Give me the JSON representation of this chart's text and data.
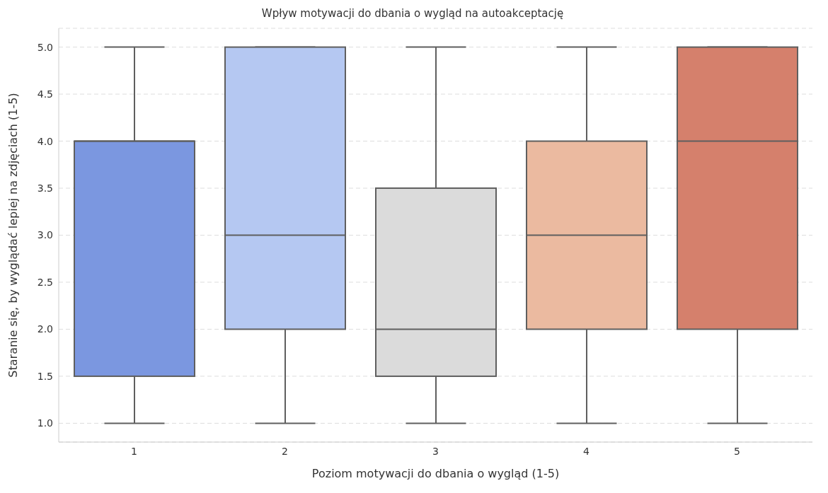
{
  "chart_data": {
    "type": "box",
    "title": "Wpływ motywacji do dbania o wygląd na autoakceptację",
    "xlabel": "Poziom motywacji do dbania o wygląd (1-5)",
    "ylabel": "Staranie się, by wyglądać lepiej na zdjęciach (1-5)",
    "categories": [
      "1",
      "2",
      "3",
      "4",
      "5"
    ],
    "colors": [
      "#7b97e0",
      "#b5c8f2",
      "#dbdbdb",
      "#ebbaa0",
      "#d5806c"
    ],
    "boxes": [
      {
        "low": 1,
        "q1": 1.5,
        "median": 4,
        "q3": 4,
        "high": 5
      },
      {
        "low": 1,
        "q1": 2,
        "median": 3,
        "q3": 5,
        "high": 5
      },
      {
        "low": 1,
        "q1": 1.5,
        "median": 2,
        "q3": 3.5,
        "high": 5
      },
      {
        "low": 1,
        "q1": 2,
        "median": 3,
        "q3": 4,
        "high": 5
      },
      {
        "low": 1,
        "q1": 2,
        "median": 4,
        "q3": 5,
        "high": 5
      }
    ],
    "ylim": [
      0.8,
      5.2
    ],
    "yticks": [
      {
        "value": 1,
        "label": "1.0"
      },
      1.5,
      {
        "value": 2,
        "label": "2.0"
      },
      2.5,
      {
        "value": 3,
        "label": "3.0"
      },
      3.5,
      {
        "value": 4,
        "label": "4.0"
      },
      4.5,
      {
        "value": 5,
        "label": "5.0"
      }
    ],
    "grid": "y"
  }
}
